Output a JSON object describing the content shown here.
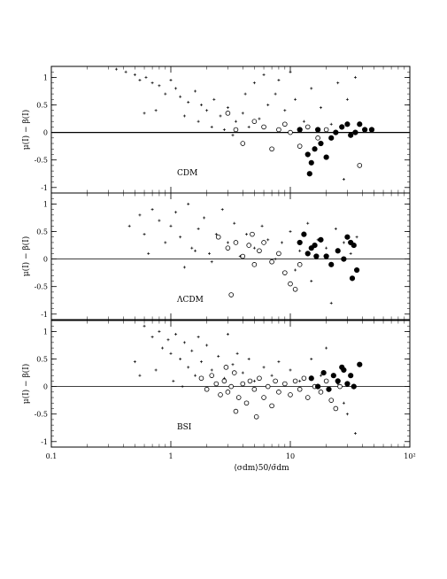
{
  "chart_data": [
    {
      "type": "scatter",
      "panel_label": "CDM",
      "ylabel": "μ(I) − β(I)",
      "xlabel": "",
      "xscale": "log",
      "xlim": [
        0.1,
        100
      ],
      "ylim": [
        -1.1,
        1.2
      ],
      "yticks": [
        1,
        0.5,
        0,
        -0.5,
        -1
      ],
      "ytick_labels": [
        "1",
        "0.5",
        "0",
        "-0.5",
        "-1"
      ],
      "xticks": [
        0.1,
        1,
        10,
        100
      ],
      "xtick_labels": [
        "",
        "",
        "",
        ""
      ],
      "zero_line": true,
      "series": [
        {
          "marker": "cross",
          "points": [
            [
              0.35,
              1.15
            ],
            [
              0.42,
              1.1
            ],
            [
              0.5,
              1.05
            ],
            [
              0.55,
              0.95
            ],
            [
              0.62,
              1.0
            ],
            [
              0.7,
              0.9
            ],
            [
              0.8,
              0.85
            ],
            [
              0.9,
              0.7
            ],
            [
              1.0,
              0.95
            ],
            [
              1.1,
              0.8
            ],
            [
              1.2,
              0.65
            ],
            [
              1.4,
              0.55
            ],
            [
              1.6,
              0.75
            ],
            [
              1.8,
              0.5
            ],
            [
              2.0,
              0.4
            ],
            [
              2.3,
              0.6
            ],
            [
              2.6,
              0.3
            ],
            [
              3.0,
              0.45
            ],
            [
              3.5,
              0.2
            ],
            [
              4.0,
              0.35
            ],
            [
              4.5,
              0.1
            ],
            [
              5.5,
              0.25
            ],
            [
              6.5,
              0.5
            ],
            [
              7.5,
              0.7
            ],
            [
              9.0,
              0.4
            ],
            [
              11,
              0.6
            ],
            [
              13,
              0.2
            ],
            [
              15,
              0.8
            ],
            [
              18,
              0.45
            ],
            [
              22,
              0.15
            ],
            [
              25,
              0.9
            ],
            [
              30,
              0.6
            ],
            [
              35,
              1.0
            ],
            [
              0.6,
              0.35
            ],
            [
              0.75,
              0.4
            ],
            [
              1.3,
              0.3
            ],
            [
              1.7,
              0.2
            ],
            [
              2.2,
              0.1
            ],
            [
              2.8,
              0.05
            ],
            [
              3.3,
              -0.05
            ],
            [
              4.2,
              0.7
            ],
            [
              5.0,
              0.9
            ],
            [
              6.0,
              1.05
            ],
            [
              8.0,
              0.95
            ],
            [
              10,
              1.1
            ],
            [
              28,
              -0.85
            ]
          ]
        },
        {
          "marker": "open-circle",
          "points": [
            [
              3.0,
              0.35
            ],
            [
              3.5,
              0.05
            ],
            [
              4.0,
              -0.2
            ],
            [
              5.0,
              0.2
            ],
            [
              6.0,
              0.1
            ],
            [
              7.0,
              -0.3
            ],
            [
              8.0,
              0.05
            ],
            [
              9.0,
              0.15
            ],
            [
              10,
              0.0
            ],
            [
              12,
              -0.25
            ],
            [
              14,
              0.1
            ],
            [
              17,
              -0.1
            ],
            [
              20,
              0.05
            ],
            [
              38,
              -0.6
            ]
          ]
        },
        {
          "marker": "filled-circle",
          "points": [
            [
              12,
              0.05
            ],
            [
              14,
              -0.4
            ],
            [
              15,
              -0.55
            ],
            [
              16,
              -0.3
            ],
            [
              17,
              0.05
            ],
            [
              18,
              -0.2
            ],
            [
              20,
              -0.45
            ],
            [
              22,
              -0.1
            ],
            [
              24,
              0.0
            ],
            [
              27,
              0.1
            ],
            [
              30,
              0.15
            ],
            [
              32,
              -0.05
            ],
            [
              35,
              0.0
            ],
            [
              38,
              0.15
            ],
            [
              42,
              0.05
            ],
            [
              48,
              0.05
            ],
            [
              14.5,
              -0.75
            ]
          ]
        }
      ]
    },
    {
      "type": "scatter",
      "panel_label": "ΛCDM",
      "ylabel": "μ(I) − β(I)",
      "xlabel": "",
      "xscale": "log",
      "xlim": [
        0.1,
        100
      ],
      "ylim": [
        -1.1,
        1.2
      ],
      "yticks": [
        1,
        0.5,
        0,
        -0.5,
        -1
      ],
      "ytick_labels": [
        "1",
        "0.5",
        "0",
        "-0.5",
        "-1"
      ],
      "xticks": [
        0.1,
        1,
        10,
        100
      ],
      "xtick_labels": [
        "",
        "",
        "",
        ""
      ],
      "zero_line": true,
      "series": [
        {
          "marker": "cross",
          "points": [
            [
              0.45,
              0.6
            ],
            [
              0.55,
              0.8
            ],
            [
              0.6,
              0.45
            ],
            [
              0.7,
              0.9
            ],
            [
              0.8,
              0.7
            ],
            [
              0.9,
              0.3
            ],
            [
              1.0,
              0.6
            ],
            [
              1.1,
              0.85
            ],
            [
              1.2,
              0.4
            ],
            [
              1.4,
              1.0
            ],
            [
              1.5,
              0.2
            ],
            [
              1.7,
              0.55
            ],
            [
              1.9,
              0.75
            ],
            [
              2.1,
              0.1
            ],
            [
              2.4,
              0.45
            ],
            [
              2.7,
              0.9
            ],
            [
              3.0,
              0.3
            ],
            [
              3.4,
              0.65
            ],
            [
              3.8,
              0.05
            ],
            [
              4.3,
              0.45
            ],
            [
              5.0,
              0.2
            ],
            [
              5.8,
              0.6
            ],
            [
              6.5,
              0.35
            ],
            [
              7.5,
              0.0
            ],
            [
              8.5,
              0.3
            ],
            [
              10,
              0.5
            ],
            [
              12,
              0.15
            ],
            [
              14,
              0.65
            ],
            [
              17,
              0.35
            ],
            [
              20,
              0.2
            ],
            [
              24,
              0.55
            ],
            [
              28,
              0.3
            ],
            [
              32,
              0.1
            ],
            [
              36,
              0.4
            ],
            [
              1.3,
              -0.15
            ],
            [
              0.65,
              0.1
            ],
            [
              1.6,
              0.15
            ],
            [
              2.2,
              -0.05
            ],
            [
              11,
              -0.2
            ],
            [
              15,
              -0.4
            ],
            [
              22,
              -0.8
            ]
          ]
        },
        {
          "marker": "open-circle",
          "points": [
            [
              2.5,
              0.4
            ],
            [
              3.0,
              0.2
            ],
            [
              3.5,
              0.3
            ],
            [
              4.0,
              0.05
            ],
            [
              4.5,
              0.25
            ],
            [
              5.0,
              -0.1
            ],
            [
              5.5,
              0.15
            ],
            [
              6.0,
              0.3
            ],
            [
              7.0,
              -0.05
            ],
            [
              8.0,
              0.1
            ],
            [
              9.0,
              -0.25
            ],
            [
              10,
              -0.45
            ],
            [
              11,
              -0.55
            ],
            [
              12,
              -0.1
            ],
            [
              3.2,
              -0.65
            ],
            [
              4.8,
              0.45
            ]
          ]
        },
        {
          "marker": "filled-circle",
          "points": [
            [
              12,
              0.3
            ],
            [
              13,
              0.45
            ],
            [
              14,
              0.1
            ],
            [
              15,
              0.2
            ],
            [
              16,
              0.25
            ],
            [
              18,
              0.35
            ],
            [
              20,
              0.05
            ],
            [
              22,
              -0.1
            ],
            [
              25,
              0.15
            ],
            [
              28,
              0.0
            ],
            [
              30,
              0.4
            ],
            [
              32,
              0.3
            ],
            [
              34,
              0.25
            ],
            [
              36,
              -0.2
            ],
            [
              33,
              -0.35
            ],
            [
              16.5,
              0.05
            ]
          ]
        }
      ]
    },
    {
      "type": "scatter",
      "panel_label": "BSI",
      "ylabel": "μ(I) − β(I)",
      "xlabel": "⟨σdm⟩50/σ̄dm",
      "xscale": "log",
      "xlim": [
        0.1,
        100
      ],
      "ylim": [
        -1.1,
        1.2
      ],
      "yticks": [
        1,
        0.5,
        0,
        -0.5,
        -1
      ],
      "ytick_labels": [
        "1",
        "0.5",
        "0",
        "-0.5",
        "-1"
      ],
      "xticks": [
        0.1,
        1,
        10,
        100
      ],
      "xtick_labels": [
        "0.1",
        "1",
        "10",
        "10²"
      ],
      "zero_line": true,
      "series": [
        {
          "marker": "cross",
          "points": [
            [
              0.6,
              1.1
            ],
            [
              0.7,
              0.9
            ],
            [
              0.8,
              1.0
            ],
            [
              0.85,
              0.7
            ],
            [
              0.95,
              0.85
            ],
            [
              1.0,
              0.6
            ],
            [
              1.1,
              0.95
            ],
            [
              1.2,
              0.5
            ],
            [
              1.3,
              0.8
            ],
            [
              1.4,
              0.35
            ],
            [
              1.5,
              0.65
            ],
            [
              1.6,
              0.2
            ],
            [
              1.7,
              0.9
            ],
            [
              1.8,
              0.45
            ],
            [
              2.0,
              0.75
            ],
            [
              2.2,
              0.3
            ],
            [
              2.5,
              0.55
            ],
            [
              2.8,
              0.15
            ],
            [
              3.0,
              0.95
            ],
            [
              3.3,
              0.4
            ],
            [
              3.6,
              0.6
            ],
            [
              4.0,
              0.25
            ],
            [
              4.5,
              0.5
            ],
            [
              5.0,
              0.1
            ],
            [
              6.0,
              0.35
            ],
            [
              7.0,
              0.2
            ],
            [
              8.0,
              0.45
            ],
            [
              10,
              0.3
            ],
            [
              12,
              0.1
            ],
            [
              0.5,
              0.45
            ],
            [
              0.55,
              0.2
            ],
            [
              0.75,
              0.3
            ],
            [
              1.05,
              0.1
            ],
            [
              1.25,
              0.0
            ],
            [
              15,
              0.5
            ],
            [
              18,
              0.2
            ],
            [
              20,
              0.7
            ],
            [
              25,
              0.05
            ],
            [
              30,
              -0.5
            ],
            [
              35,
              -0.85
            ],
            [
              28,
              -0.3
            ]
          ]
        },
        {
          "marker": "open-circle",
          "points": [
            [
              1.8,
              0.15
            ],
            [
              2.0,
              -0.05
            ],
            [
              2.2,
              0.2
            ],
            [
              2.4,
              0.05
            ],
            [
              2.6,
              -0.15
            ],
            [
              2.8,
              0.1
            ],
            [
              3.0,
              -0.1
            ],
            [
              3.2,
              0.0
            ],
            [
              3.4,
              0.25
            ],
            [
              3.7,
              -0.2
            ],
            [
              4.0,
              0.05
            ],
            [
              4.3,
              -0.3
            ],
            [
              4.6,
              0.1
            ],
            [
              5.0,
              -0.05
            ],
            [
              5.5,
              0.15
            ],
            [
              6.0,
              -0.2
            ],
            [
              6.5,
              0.0
            ],
            [
              7.0,
              -0.35
            ],
            [
              7.5,
              0.1
            ],
            [
              8.0,
              -0.1
            ],
            [
              9.0,
              0.05
            ],
            [
              10,
              -0.15
            ],
            [
              11,
              0.1
            ],
            [
              12,
              -0.05
            ],
            [
              13,
              0.15
            ],
            [
              14,
              -0.2
            ],
            [
              16,
              0.0
            ],
            [
              18,
              -0.1
            ],
            [
              20,
              0.1
            ],
            [
              22,
              -0.25
            ],
            [
              24,
              -0.4
            ],
            [
              26,
              0.0
            ],
            [
              3.5,
              -0.45
            ],
            [
              5.2,
              -0.55
            ],
            [
              2.9,
              0.35
            ]
          ]
        },
        {
          "marker": "filled-circle",
          "points": [
            [
              15,
              0.15
            ],
            [
              17,
              0.0
            ],
            [
              19,
              0.25
            ],
            [
              21,
              -0.05
            ],
            [
              23,
              0.2
            ],
            [
              25,
              0.1
            ],
            [
              27,
              0.35
            ],
            [
              30,
              0.05
            ],
            [
              32,
              0.2
            ],
            [
              34,
              0.0
            ],
            [
              38,
              0.4
            ],
            [
              28,
              0.3
            ]
          ]
        }
      ]
    }
  ]
}
